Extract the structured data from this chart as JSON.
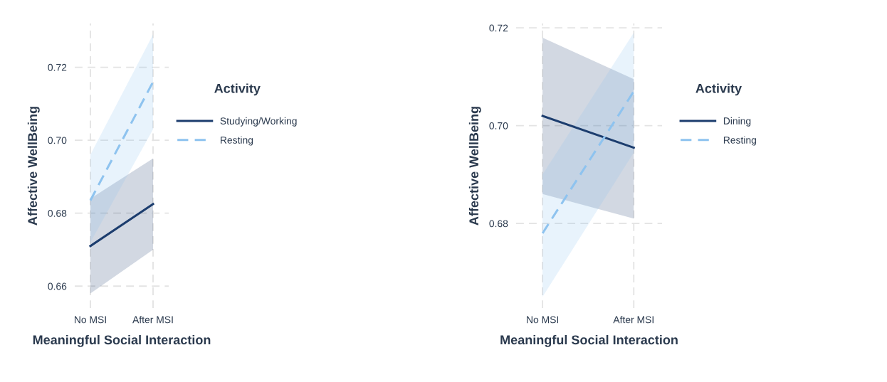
{
  "chart_data": [
    {
      "type": "line",
      "xlabel": "Meaningful Social Interaction",
      "ylabel": "Affective WellBeing",
      "legend_title": "Activity",
      "categories": [
        "No MSI",
        "After MSI"
      ],
      "ylim": [
        0.654,
        0.732
      ],
      "yticks": [
        0.66,
        0.68,
        {
          "value": 0.7,
          "label": "0.70"
        },
        0.72
      ],
      "grid": true,
      "legend": "right",
      "series": [
        {
          "name": "Studying/Working",
          "color": "#1c3d6e",
          "line_style": "solid",
          "values": [
            0.671,
            0.6825
          ],
          "lower": [
            0.658,
            0.67
          ],
          "upper": [
            0.684,
            0.695
          ]
        },
        {
          "name": "Resting",
          "color": "#8ec3ef",
          "line_style": "dashed",
          "values": [
            0.6835,
            0.716
          ],
          "lower": [
            0.672,
            0.703
          ],
          "upper": [
            0.696,
            0.729
          ]
        }
      ]
    },
    {
      "type": "line",
      "xlabel": "Meaningful Social Interaction",
      "ylabel": "Affective WellBeing",
      "legend_title": "Activity",
      "categories": [
        "No MSI",
        "After MSI"
      ],
      "ylim": [
        0.6627,
        0.7209
      ],
      "yticks": [
        0.68,
        {
          "value": 0.7,
          "label": "0.70"
        },
        0.72
      ],
      "grid": true,
      "legend": "right",
      "series": [
        {
          "name": "Dining",
          "color": "#1c3d6e",
          "line_style": "solid",
          "values": [
            0.702,
            0.6955
          ],
          "lower": [
            0.686,
            0.681
          ],
          "upper": [
            0.718,
            0.7095
          ]
        },
        {
          "name": "Resting",
          "color": "#8ec3ef",
          "line_style": "dashed",
          "values": [
            0.678,
            0.707
          ],
          "lower": [
            0.665,
            0.6945
          ],
          "upper": [
            0.69,
            0.719
          ]
        }
      ]
    }
  ]
}
